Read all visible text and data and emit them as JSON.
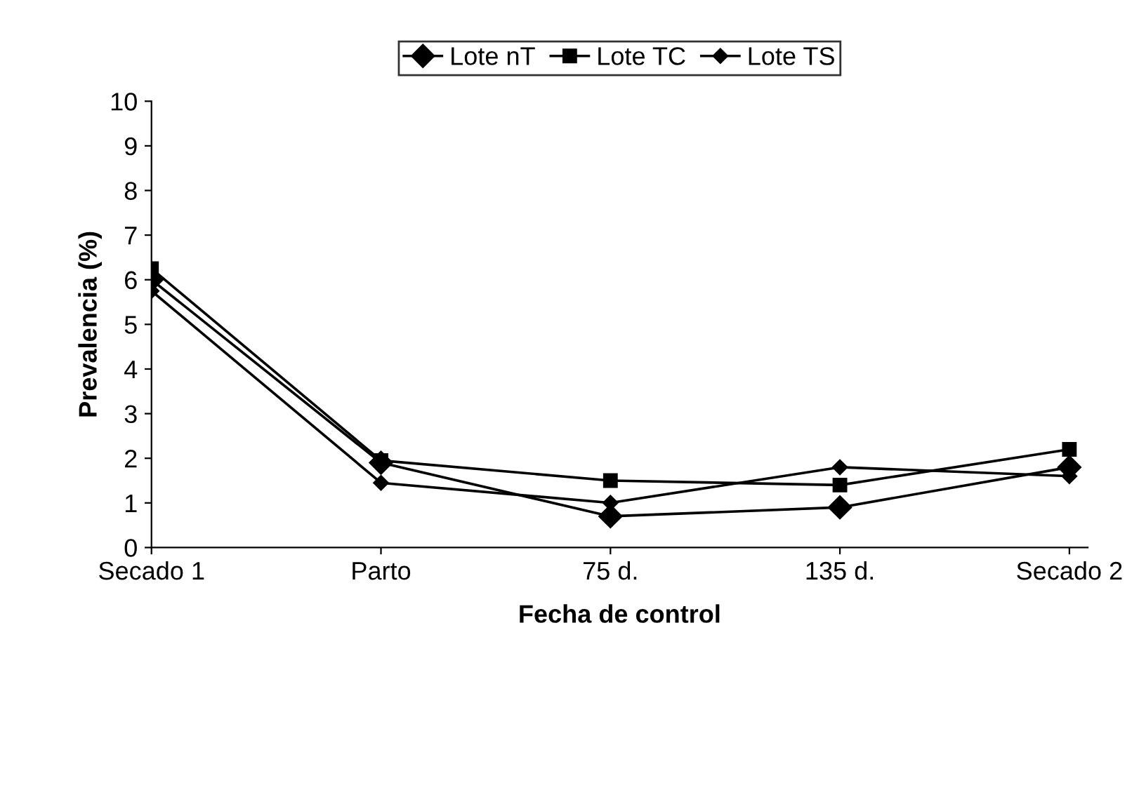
{
  "chart_data": {
    "type": "line",
    "xlabel": "Fecha de control",
    "ylabel": "Prevalencia (%)",
    "categories": [
      "Secado 1",
      "Parto",
      "75 d.",
      "135 d.",
      "Secado 2"
    ],
    "series": [
      {
        "name": "Lote nT",
        "color": "#000000",
        "marker": "diamond",
        "values": [
          6.0,
          1.9,
          0.7,
          0.9,
          1.8
        ]
      },
      {
        "name": "Lote TC",
        "color": "#000000",
        "marker": "square",
        "values": [
          6.25,
          1.95,
          1.5,
          1.4,
          2.2
        ]
      },
      {
        "name": "Lote TS",
        "color": "#000000",
        "marker": "diamond",
        "values": [
          5.75,
          1.45,
          1.0,
          1.8,
          1.6
        ]
      }
    ],
    "ylim": [
      0,
      10
    ],
    "yticks": [
      0,
      1,
      2,
      3,
      4,
      5,
      6,
      7,
      8,
      9,
      10
    ],
    "grid": false,
    "legend": "top",
    "line_style": "solid"
  }
}
